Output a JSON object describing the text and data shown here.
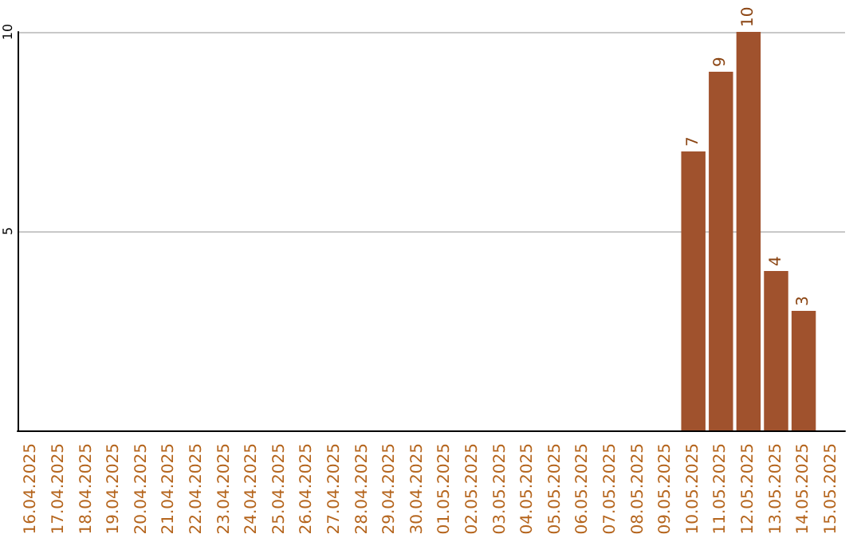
{
  "chart_data": {
    "type": "bar",
    "categories": [
      "16.04.2025",
      "17.04.2025",
      "18.04.2025",
      "19.04.2025",
      "20.04.2025",
      "21.04.2025",
      "22.04.2025",
      "23.04.2025",
      "24.04.2025",
      "25.04.2025",
      "26.04.2025",
      "27.04.2025",
      "28.04.2025",
      "29.04.2025",
      "30.04.2025",
      "01.05.2025",
      "02.05.2025",
      "03.05.2025",
      "04.05.2025",
      "05.05.2025",
      "06.05.2025",
      "07.05.2025",
      "08.05.2025",
      "09.05.2025",
      "10.05.2025",
      "11.05.2025",
      "12.05.2025",
      "13.05.2025",
      "14.05.2025",
      "15.05.2025"
    ],
    "values": [
      0,
      0,
      0,
      0,
      0,
      0,
      0,
      0,
      0,
      0,
      0,
      0,
      0,
      0,
      0,
      0,
      0,
      0,
      0,
      0,
      0,
      0,
      0,
      0,
      7,
      9,
      10,
      4,
      3,
      0
    ],
    "value_labels": [
      null,
      null,
      null,
      null,
      null,
      null,
      null,
      null,
      null,
      null,
      null,
      null,
      null,
      null,
      null,
      null,
      null,
      null,
      null,
      null,
      null,
      null,
      null,
      null,
      "7",
      "9",
      "10",
      "4",
      "3",
      null
    ],
    "color": "#a0522d",
    "ylim": [
      0,
      10
    ],
    "yticks": [
      5,
      10
    ],
    "grid": "y"
  }
}
